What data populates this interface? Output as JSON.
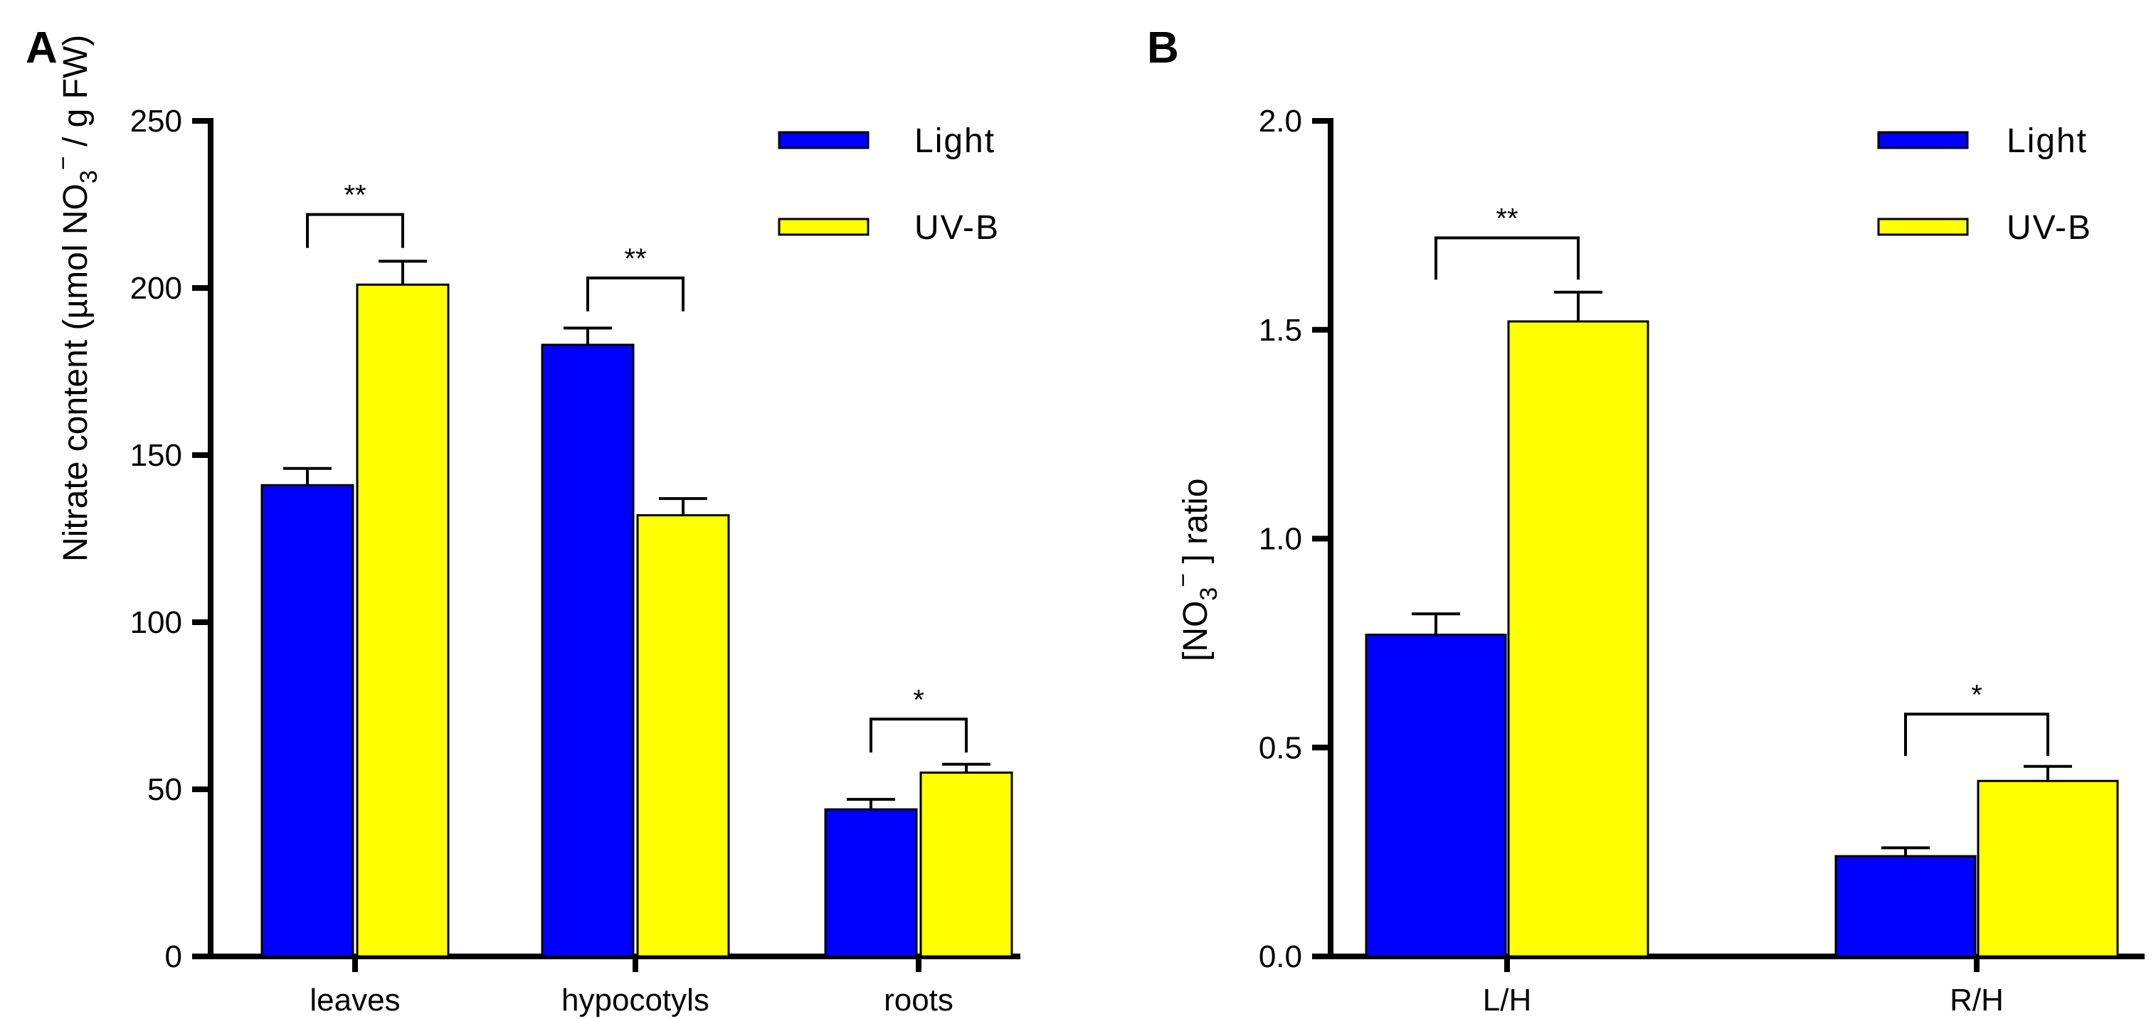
{
  "panels": [
    {
      "label": "A",
      "ylabel": "",
      "legend_position": "top-right",
      "chart_data": {
        "type": "bar",
        "categories": [
          "leaves",
          "hypocotyls",
          "roots"
        ],
        "ylim": [
          0,
          250
        ],
        "yticks": [
          "0",
          "50",
          "100",
          "150",
          "200",
          "250"
        ],
        "ytick_values": [
          0,
          50,
          100,
          150,
          200,
          250
        ],
        "series": [
          {
            "name": "Light",
            "color": "#0000ff",
            "values": [
              141,
              183,
              44
            ],
            "errors": [
              5,
              5,
              3
            ]
          },
          {
            "name": "UV-B",
            "color": "#ffff00",
            "values": [
              201,
              132,
              55
            ],
            "errors": [
              7,
              5,
              2.5
            ]
          }
        ],
        "significance": [
          {
            "category": 0,
            "label": "**",
            "bracket_y": 222,
            "tick_down_y": 212
          },
          {
            "category": 1,
            "label": "**",
            "bracket_y": 203,
            "tick_down_y": 193
          },
          {
            "category": 2,
            "label": "*",
            "bracket_y": 71,
            "tick_down_y": 61
          }
        ]
      }
    },
    {
      "label": "B",
      "ylabel": "",
      "legend_position": "top-right",
      "chart_data": {
        "type": "bar",
        "categories": [
          "L/H",
          "R/H"
        ],
        "ylim": [
          0,
          2.0
        ],
        "yticks": [
          "0.0",
          "0.5",
          "1.0",
          "1.5",
          "2.0"
        ],
        "ytick_values": [
          0,
          0.5,
          1.0,
          1.5,
          2.0
        ],
        "series": [
          {
            "name": "Light",
            "color": "#0000ff",
            "values": [
              0.77,
              0.24
            ],
            "errors": [
              0.05,
              0.02
            ]
          },
          {
            "name": "UV-B",
            "color": "#ffff00",
            "values": [
              1.52,
              0.42
            ],
            "errors": [
              0.07,
              0.035
            ]
          }
        ],
        "significance": [
          {
            "category": 0,
            "label": "**",
            "bracket_y": 1.72,
            "tick_down_y": 1.62
          },
          {
            "category": 1,
            "label": "*",
            "bracket_y": 0.58,
            "tick_down_y": 0.48
          }
        ]
      }
    }
  ]
}
